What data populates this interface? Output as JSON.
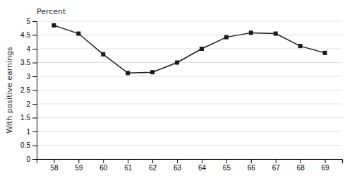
{
  "chart_data": {
    "type": "line",
    "y_label": "With positive earnings",
    "annotations": [
      "Percent"
    ],
    "x": [
      58,
      59,
      60,
      61,
      62,
      63,
      64,
      65,
      66,
      67,
      68,
      69
    ],
    "values": [
      4.85,
      4.55,
      3.8,
      3.12,
      3.15,
      3.5,
      4.0,
      4.42,
      4.58,
      4.55,
      4.1,
      3.85
    ],
    "color": "#1a1a1a",
    "marker": "square",
    "xlim": [
      57.3,
      69.7
    ],
    "xticks": [
      58,
      59,
      60,
      61,
      62,
      63,
      64,
      65,
      66,
      67,
      68,
      69
    ],
    "ylim": [
      0,
      5
    ],
    "yticks": [
      0,
      0.5,
      1,
      1.5,
      2,
      2.5,
      3,
      3.5,
      4,
      4.5,
      5
    ],
    "grid": "y"
  }
}
